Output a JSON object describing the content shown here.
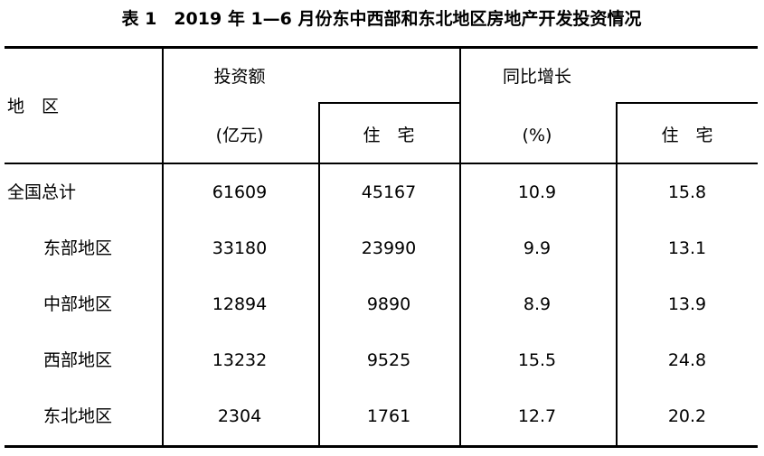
{
  "header": {
    "title": "表 1　2019 年 1—6 月份东中西部和东北地区房地产开发投资情况"
  },
  "table": {
    "columns": {
      "region": "地　区",
      "investment": "投资额",
      "investment_unit": "(亿元)",
      "residential_1": "住　宅",
      "growth": "同比增长",
      "growth_unit": "(%)",
      "residential_2": "住　宅"
    },
    "rows": [
      [
        "全国总计",
        61609,
        45167,
        10.9,
        15.8
      ],
      [
        "东部地区",
        33180,
        23990,
        9.9,
        13.1
      ],
      [
        "中部地区",
        12894,
        9890,
        8.9,
        13.9
      ],
      [
        "西部地区",
        13232,
        9525,
        15.5,
        24.8
      ],
      [
        "东北地区",
        2304,
        1761,
        12.7,
        20.2
      ]
    ]
  }
}
